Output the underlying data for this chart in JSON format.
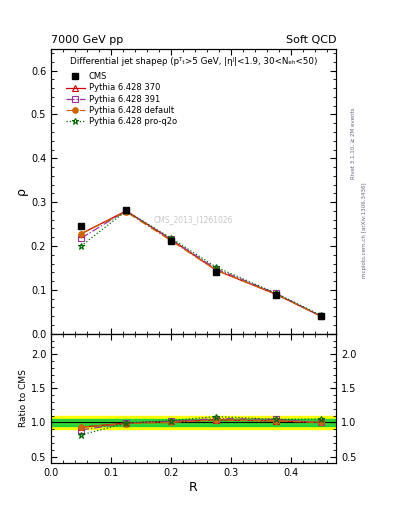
{
  "title_top": "7000 GeV pp",
  "title_right": "Soft QCD",
  "main_title": "Differential jet shapeρ (pᵀₜ>5 GeV, |ηʲ|<1.9, 30<Nₑₕ<50)",
  "xlabel": "R",
  "ylabel_main": "ρ",
  "ylabel_ratio": "Ratio to CMS",
  "right_label_top": "Rivet 3.1.10, ≥ 2M events",
  "right_label_bot": "mcplots.cern.ch [arXiv:1306.3436]",
  "watermark": "CMS_2013_I1261026",
  "x_values": [
    0.05,
    0.125,
    0.2,
    0.275,
    0.375,
    0.45
  ],
  "cms_y": [
    0.245,
    0.283,
    0.212,
    0.14,
    0.088,
    0.04
  ],
  "p370_y": [
    0.228,
    0.28,
    0.215,
    0.145,
    0.09,
    0.04
  ],
  "p391_y": [
    0.218,
    0.28,
    0.215,
    0.148,
    0.092,
    0.04
  ],
  "pdefault_y": [
    0.228,
    0.278,
    0.212,
    0.145,
    0.09,
    0.04
  ],
  "ppro_y": [
    0.2,
    0.28,
    0.218,
    0.152,
    0.092,
    0.042
  ],
  "ratio_370": [
    0.93,
    0.99,
    1.014,
    1.036,
    1.023,
    1.0
  ],
  "ratio_391": [
    0.89,
    0.99,
    1.014,
    1.057,
    1.045,
    1.0
  ],
  "ratio_default": [
    0.93,
    0.982,
    1.0,
    1.036,
    1.023,
    1.0
  ],
  "ratio_pro": [
    0.816,
    0.99,
    1.028,
    1.086,
    1.045,
    1.05
  ],
  "color_cms": "#000000",
  "color_370": "#cc0000",
  "color_391": "#993399",
  "color_default": "#cc6600",
  "color_pro": "#006600",
  "ylim_main": [
    0.0,
    0.65
  ],
  "ylim_ratio": [
    0.4,
    2.3
  ],
  "yticks_main": [
    0.0,
    0.1,
    0.2,
    0.3,
    0.4,
    0.5,
    0.6
  ],
  "yticks_ratio": [
    0.5,
    1.0,
    1.5,
    2.0
  ],
  "xlim": [
    0.0,
    0.475
  ]
}
